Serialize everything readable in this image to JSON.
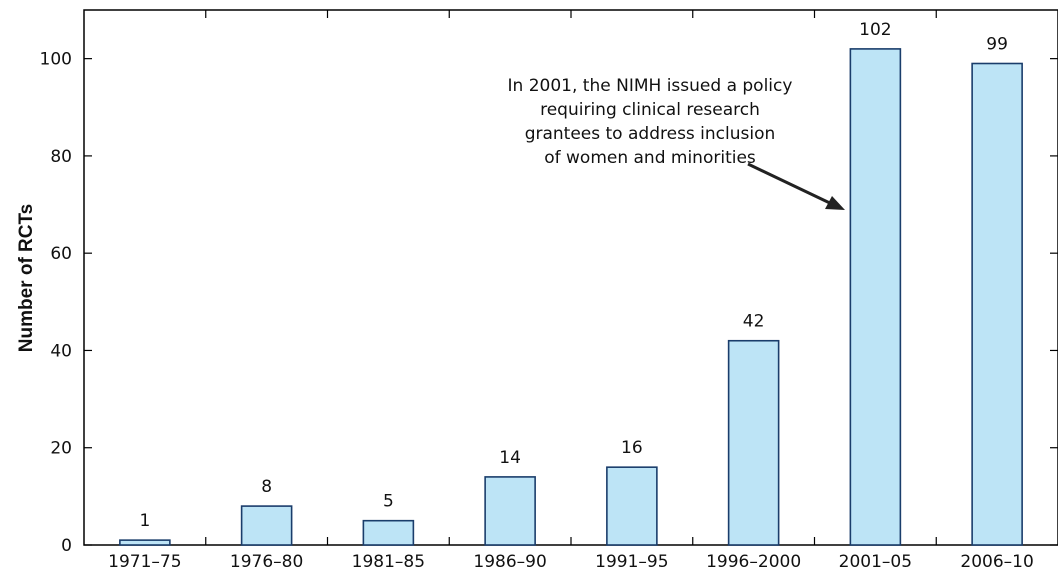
{
  "chart_data": {
    "type": "bar",
    "categories": [
      "1971–75",
      "1976–80",
      "1981–85",
      "1986–90",
      "1991–95",
      "1996–2000",
      "2001–05",
      "2006–10"
    ],
    "values": [
      1,
      8,
      5,
      14,
      16,
      42,
      102,
      99
    ],
    "data_labels": [
      "1",
      "8",
      "5",
      "14",
      "16",
      "42",
      "102",
      "99"
    ],
    "ylabel": "Number of RCTs",
    "xlabel": "",
    "ylim": [
      0,
      110
    ],
    "yticks": [
      0,
      20,
      40,
      60,
      80,
      100
    ],
    "grid": false,
    "bar_color": "#bde4f6",
    "bar_edge_color": "#1a3d6b",
    "annotation": {
      "lines": [
        "In 2001, the NIMH issued a policy",
        "requiring clinical research",
        "grantees to address inclusion",
        "of women and minorities"
      ],
      "arrow_target_category": "2001–05"
    }
  }
}
